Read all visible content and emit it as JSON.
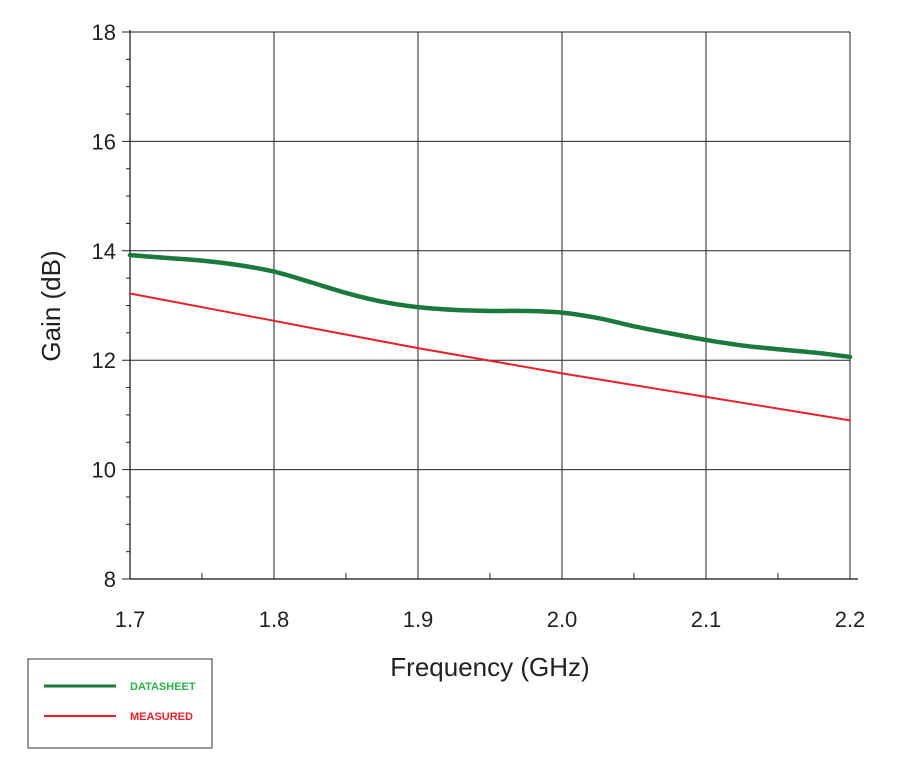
{
  "chart_data": {
    "type": "line",
    "title": "",
    "xlabel": "Frequency (GHz)",
    "ylabel": "Gain (dB)",
    "xlim": [
      1.7,
      2.2
    ],
    "ylim": [
      8,
      18
    ],
    "x_ticks": [
      "1.7",
      "1.8",
      "1.9",
      "2.0",
      "2.1",
      "2.2"
    ],
    "y_ticks": [
      "8",
      "10",
      "12",
      "14",
      "16",
      "18"
    ],
    "grid": true,
    "legend_position": "bottom-left",
    "series": [
      {
        "name": "DATASHEET",
        "color": "#1a7a3c",
        "x": [
          1.7,
          1.725,
          1.75,
          1.775,
          1.8,
          1.825,
          1.85,
          1.875,
          1.9,
          1.925,
          1.95,
          1.975,
          2.0,
          2.025,
          2.05,
          2.075,
          2.1,
          2.125,
          2.15,
          2.175,
          2.2
        ],
        "y": [
          13.92,
          13.87,
          13.82,
          13.74,
          13.62,
          13.43,
          13.23,
          13.07,
          12.97,
          12.92,
          12.9,
          12.9,
          12.87,
          12.77,
          12.62,
          12.49,
          12.37,
          12.27,
          12.2,
          12.14,
          12.06
        ]
      },
      {
        "name": "MEASURED",
        "color": "#e8202a",
        "x": [
          1.7,
          1.8,
          1.9,
          2.0,
          2.1,
          2.2
        ],
        "y": [
          13.22,
          12.72,
          12.22,
          11.76,
          11.33,
          10.9
        ]
      }
    ]
  }
}
